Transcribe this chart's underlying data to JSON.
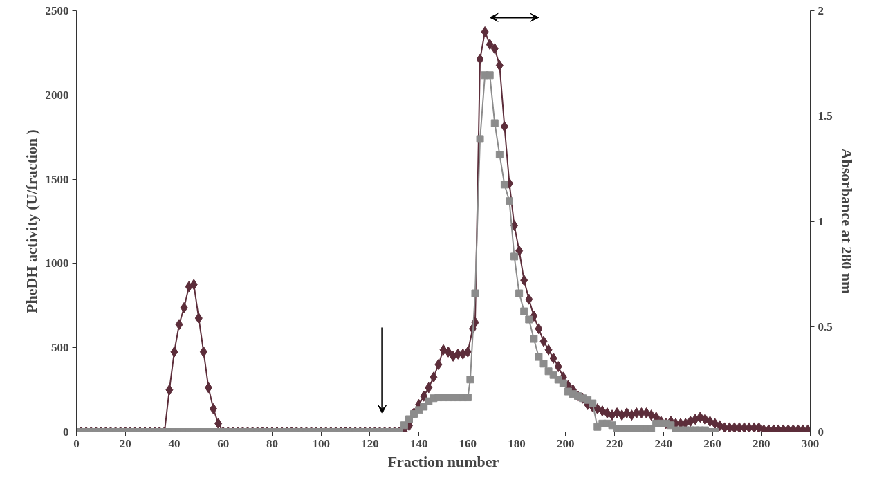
{
  "chart_data": {
    "type": "line",
    "xlabel": "Fraction number",
    "ylabel": "PheDH activity (U/fraction )",
    "y2label": "Absorbance at 280 nm",
    "xlim": [
      0,
      300
    ],
    "xticks": [
      0,
      20,
      40,
      60,
      80,
      100,
      120,
      140,
      160,
      180,
      200,
      220,
      240,
      260,
      280,
      300
    ],
    "ylim": [
      0,
      2500
    ],
    "yticks": [
      0,
      500,
      1000,
      1500,
      2000,
      2500
    ],
    "y2lim": [
      0,
      2
    ],
    "y2ticks": [
      0,
      0.5,
      1,
      1.5,
      2
    ],
    "grid": false,
    "series": [
      {
        "color": "#5c2d3a",
        "marker": "diamond",
        "axis": "y2",
        "x": [
          0,
          2,
          4,
          6,
          8,
          10,
          12,
          14,
          16,
          18,
          20,
          22,
          24,
          26,
          28,
          30,
          32,
          34,
          36,
          38,
          40,
          42,
          44,
          46,
          48,
          50,
          52,
          54,
          56,
          58,
          60,
          62,
          64,
          66,
          68,
          70,
          72,
          74,
          76,
          78,
          80,
          82,
          84,
          86,
          88,
          90,
          92,
          94,
          96,
          98,
          100,
          102,
          104,
          106,
          108,
          110,
          112,
          114,
          116,
          118,
          120,
          122,
          124,
          126,
          128,
          130,
          132,
          134,
          136,
          138,
          140,
          142,
          144,
          146,
          148,
          150,
          152,
          154,
          156,
          158,
          160,
          162,
          163,
          165,
          167,
          169,
          171,
          173,
          175,
          177,
          179,
          181,
          183,
          185,
          187,
          189,
          191,
          193,
          195,
          197,
          199,
          201,
          203,
          205,
          207,
          209,
          211,
          213,
          215,
          217,
          219,
          221,
          223,
          225,
          227,
          229,
          231,
          233,
          235,
          237,
          239,
          241,
          243,
          245,
          247,
          249,
          251,
          253,
          255,
          257,
          259,
          261,
          263,
          265,
          267,
          269,
          271,
          273,
          275,
          277,
          279,
          281,
          283,
          285,
          287,
          289,
          291,
          293,
          295,
          297,
          299
        ],
        "values": [
          0,
          0,
          0,
          0,
          0,
          0,
          0,
          0,
          0,
          0,
          0,
          0,
          0,
          0,
          0,
          0,
          0,
          0,
          0,
          0.2,
          0.38,
          0.51,
          0.59,
          0.69,
          0.7,
          0.54,
          0.38,
          0.21,
          0.11,
          0.04,
          0,
          0,
          0,
          0,
          0,
          0,
          0,
          0,
          0,
          0,
          0,
          0,
          0,
          0,
          0,
          0,
          0,
          0,
          0,
          0,
          0,
          0,
          0,
          0,
          0,
          0,
          0,
          0,
          0,
          0,
          0,
          0,
          0,
          0,
          0,
          0,
          0,
          0,
          0.03,
          0.09,
          0.13,
          0.17,
          0.21,
          0.26,
          0.32,
          0.39,
          0.38,
          0.36,
          0.37,
          0.37,
          0.38,
          0.49,
          0.52,
          1.77,
          1.9,
          1.84,
          1.82,
          1.74,
          1.45,
          1.18,
          0.98,
          0.86,
          0.72,
          0.63,
          0.55,
          0.49,
          0.43,
          0.39,
          0.35,
          0.31,
          0.26,
          0.22,
          0.2,
          0.17,
          0.16,
          0.13,
          0.12,
          0.11,
          0.1,
          0.09,
          0.08,
          0.09,
          0.08,
          0.09,
          0.08,
          0.09,
          0.09,
          0.09,
          0.08,
          0.07,
          0.05,
          0.04,
          0.05,
          0.04,
          0.04,
          0.04,
          0.05,
          0.06,
          0.07,
          0.06,
          0.05,
          0.04,
          0.03,
          0.02,
          0.02,
          0.02,
          0.02,
          0.02,
          0.02,
          0.02,
          0.02,
          0.01,
          0.01,
          0.01,
          0.01,
          0.01,
          0.01,
          0.01,
          0.01,
          0.01,
          0.01
        ]
      },
      {
        "color": "#8c8c8c",
        "marker": "square",
        "x": [
          0,
          2,
          4,
          6,
          8,
          10,
          12,
          14,
          16,
          18,
          20,
          22,
          24,
          26,
          28,
          30,
          32,
          34,
          36,
          38,
          40,
          42,
          44,
          46,
          48,
          50,
          52,
          54,
          56,
          58,
          60,
          62,
          64,
          66,
          68,
          70,
          72,
          74,
          76,
          78,
          80,
          82,
          84,
          86,
          88,
          90,
          92,
          94,
          96,
          98,
          100,
          102,
          104,
          106,
          108,
          110,
          112,
          114,
          116,
          118,
          120,
          122,
          124,
          126,
          128,
          130,
          132,
          134,
          136,
          138,
          140,
          142,
          144,
          146,
          148,
          150,
          152,
          154,
          156,
          158,
          160,
          161,
          163,
          165,
          167,
          169,
          171,
          173,
          175,
          177,
          179,
          181,
          183,
          185,
          187,
          189,
          191,
          193,
          195,
          197,
          199,
          201,
          203,
          205,
          207,
          209,
          211,
          213,
          215,
          217,
          219,
          221,
          223,
          225,
          227,
          229,
          231,
          233,
          235,
          237,
          239,
          241,
          243,
          245,
          247,
          249,
          251,
          253,
          255,
          257,
          259,
          261
        ],
        "values": [
          0,
          0,
          0,
          0,
          0,
          0,
          0,
          0,
          0,
          0,
          0,
          0,
          0,
          0,
          0,
          0,
          0,
          0,
          0,
          0,
          0,
          0,
          0,
          0,
          0,
          0,
          0,
          0,
          0,
          0,
          0,
          0,
          0,
          0,
          0,
          0,
          0,
          0,
          0,
          0,
          0,
          0,
          0,
          0,
          0,
          0,
          0,
          0,
          0,
          0,
          0,
          0,
          0,
          0,
          0,
          0,
          0,
          0,
          0,
          0,
          0,
          0,
          0,
          0,
          0,
          0,
          0,
          40,
          76,
          107,
          130,
          150,
          182,
          200,
          205,
          205,
          205,
          205,
          205,
          205,
          205,
          311,
          823,
          1739,
          2117,
          2117,
          1833,
          1646,
          1468,
          1370,
          1041,
          823,
          716,
          667,
          552,
          445,
          405,
          360,
          338,
          310,
          289,
          240,
          225,
          213,
          200,
          190,
          170,
          30,
          50,
          50,
          40,
          20,
          20,
          20,
          20,
          20,
          20,
          20,
          20,
          50,
          50,
          50,
          40,
          10,
          10,
          10,
          10,
          10,
          10,
          10,
          0,
          0
        ]
      }
    ]
  }
}
